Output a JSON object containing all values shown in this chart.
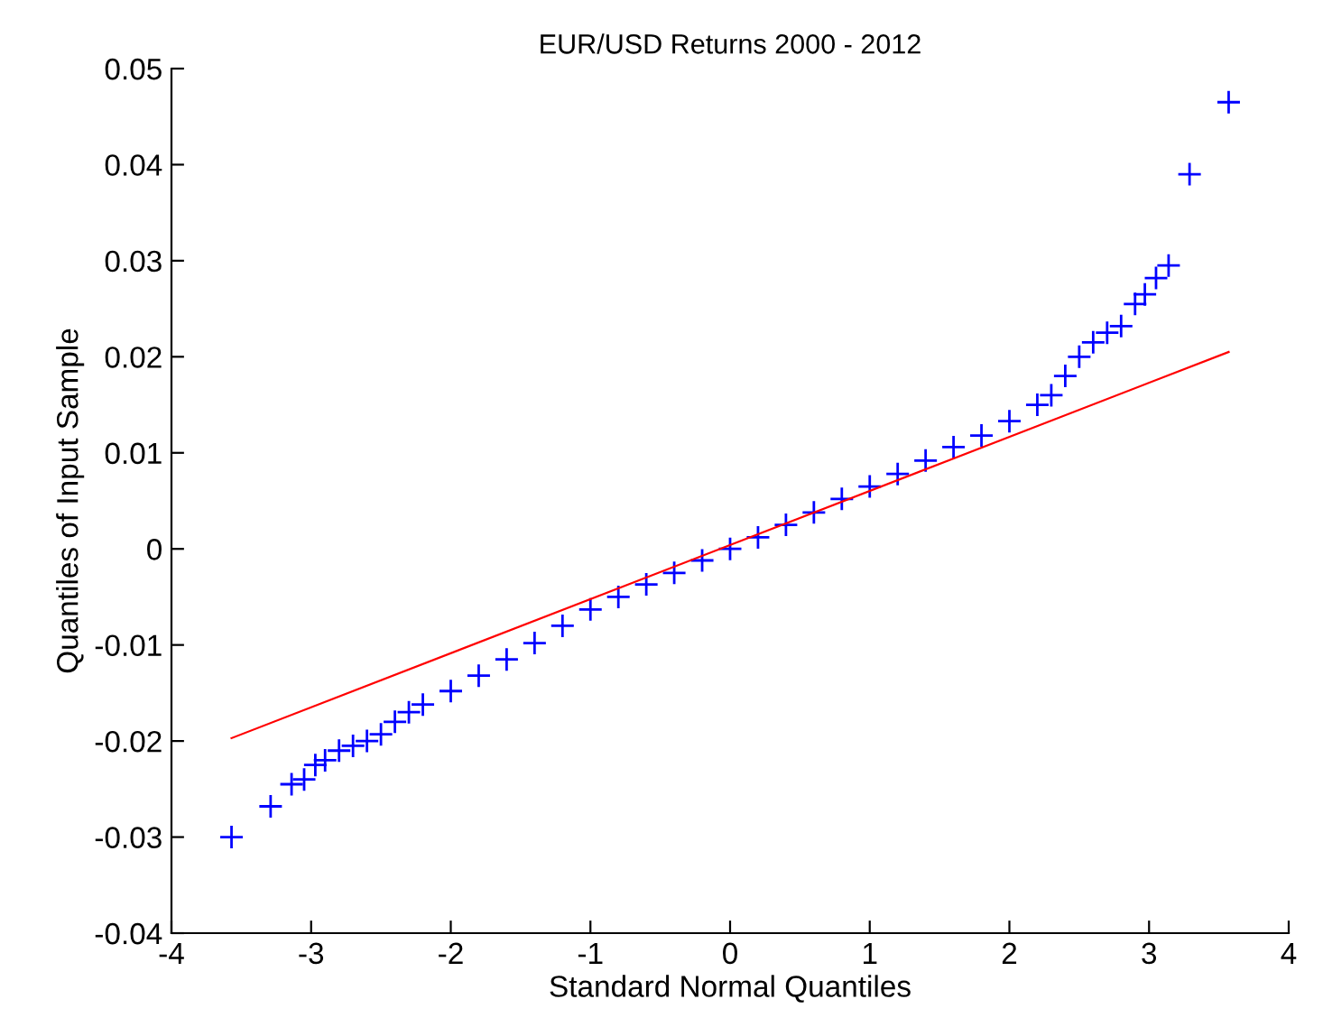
{
  "chart_data": {
    "type": "scatter",
    "title": "EUR/USD Returns 2000 - 2012",
    "xlabel": "Standard Normal Quantiles",
    "ylabel": "Quantiles of Input Sample",
    "xlim": [
      -4,
      4
    ],
    "ylim": [
      -0.04,
      0.05
    ],
    "xticks": [
      -4,
      -3,
      -2,
      -1,
      0,
      1,
      2,
      3,
      4
    ],
    "yticks": [
      -0.04,
      -0.03,
      -0.02,
      -0.01,
      0,
      0.01,
      0.02,
      0.03,
      0.04,
      0.05
    ],
    "grid": false,
    "series": [
      {
        "color": "#0000ff",
        "marker": "cross",
        "x": [
          -3.57,
          -3.29,
          -3.14,
          -3.05,
          -2.97,
          -2.9,
          -2.8,
          -2.7,
          -2.6,
          -2.5,
          -2.4,
          -2.3,
          -2.2,
          -2.0,
          -1.8,
          -1.6,
          -1.4,
          -1.2,
          -1.0,
          -0.8,
          -0.6,
          -0.4,
          -0.2,
          0,
          0.2,
          0.4,
          0.6,
          0.8,
          1.0,
          1.2,
          1.4,
          1.6,
          1.8,
          2.0,
          2.2,
          2.3,
          2.4,
          2.5,
          2.6,
          2.7,
          2.8,
          2.9,
          2.97,
          3.05,
          3.14,
          3.29,
          3.57
        ],
        "values": [
          -0.03,
          -0.0268,
          -0.0245,
          -0.024,
          -0.0225,
          -0.022,
          -0.021,
          -0.0205,
          -0.02,
          -0.0193,
          -0.018,
          -0.017,
          -0.0162,
          -0.0148,
          -0.0132,
          -0.0115,
          -0.0098,
          -0.008,
          -0.0063,
          -0.005,
          -0.0037,
          -0.0025,
          -0.0012,
          0,
          0.0012,
          0.0025,
          0.0038,
          0.0052,
          0.0065,
          0.0078,
          0.0092,
          0.0106,
          0.0118,
          0.0133,
          0.015,
          0.016,
          0.018,
          0.02,
          0.0215,
          0.0225,
          0.0232,
          0.0255,
          0.0265,
          0.0282,
          0.0295,
          0.039,
          0.0465
        ]
      },
      {
        "type": "line",
        "color": "#ff0000",
        "x": [
          -3.57,
          3.57
        ],
        "values": [
          -0.0197,
          0.0205
        ]
      }
    ]
  }
}
